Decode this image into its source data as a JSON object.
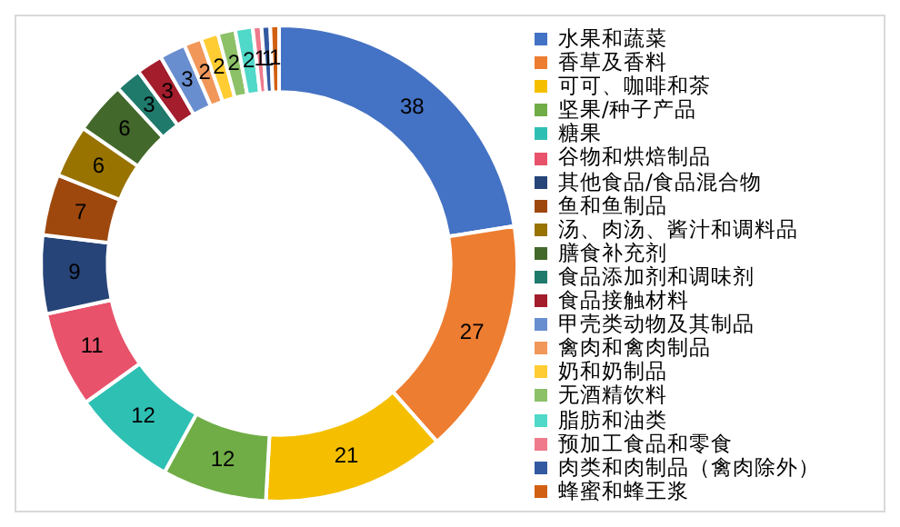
{
  "chart_data": {
    "type": "donut",
    "legend": "right",
    "data_labels": true,
    "categories": [
      "水果和蔬菜",
      "香草及香料",
      "可可、咖啡和茶",
      "坚果/种子产品",
      "糖果",
      "谷物和烘焙制品",
      "其他食品/食品混合物",
      "鱼和鱼制品",
      "汤、肉汤、酱汁和调料品",
      "膳食补充剂",
      "食品添加剂和调味剂",
      "食品接触材料",
      "甲壳类动物及其制品",
      "禽肉和禽肉制品",
      "奶和奶制品",
      "无酒精饮料",
      "脂肪和油类",
      "预加工食品和零食",
      "肉类和肉制品（禽肉除外）",
      "蜂蜜和蜂王浆"
    ],
    "values": [
      38,
      27,
      21,
      12,
      12,
      11,
      9,
      7,
      6,
      6,
      3,
      3,
      3,
      2,
      2,
      2,
      2,
      1,
      1,
      1
    ],
    "colors": [
      "#4472c4",
      "#ed7d31",
      "#f5bf00",
      "#70ad47",
      "#2fc0b4",
      "#e8526a",
      "#264478",
      "#9e480e",
      "#997300",
      "#43682b",
      "#1f7a6c",
      "#a31d2c",
      "#698ed0",
      "#f1975a",
      "#ffcd33",
      "#8cc168",
      "#50d8c8",
      "#ef7a8c",
      "#335aa1",
      "#d26012"
    ]
  }
}
